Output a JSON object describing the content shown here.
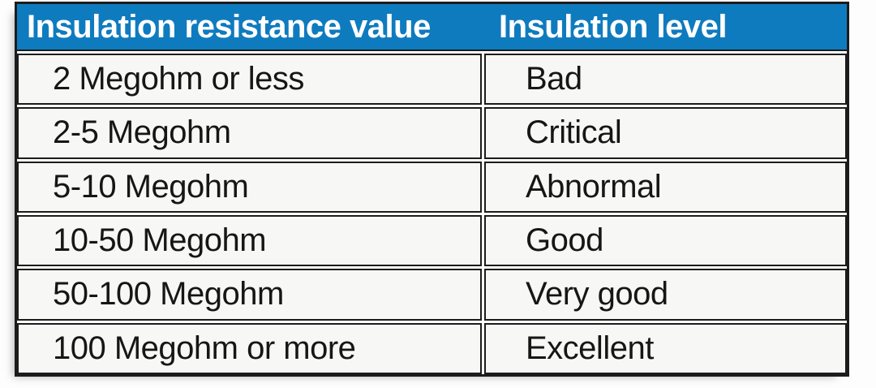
{
  "table": {
    "columns": [
      {
        "label": "Insulation resistance value"
      },
      {
        "label": "Insulation level"
      }
    ],
    "rows": [
      {
        "resistance": "2 Megohm or less",
        "level": "Bad"
      },
      {
        "resistance": "2-5 Megohm",
        "level": "Critical"
      },
      {
        "resistance": "5-10 Megohm",
        "level": "Abnormal"
      },
      {
        "resistance": "10-50 Megohm",
        "level": "Good"
      },
      {
        "resistance": "50-100 Megohm",
        "level": "Very good"
      },
      {
        "resistance": "100 Megohm or more",
        "level": "Excellent"
      }
    ],
    "colors": {
      "header_bg": "#0f7bbf",
      "header_text": "#ffffff",
      "border": "#1c1c1c",
      "cell_bg": "#f7f7f5",
      "body_text": "#161616"
    }
  }
}
